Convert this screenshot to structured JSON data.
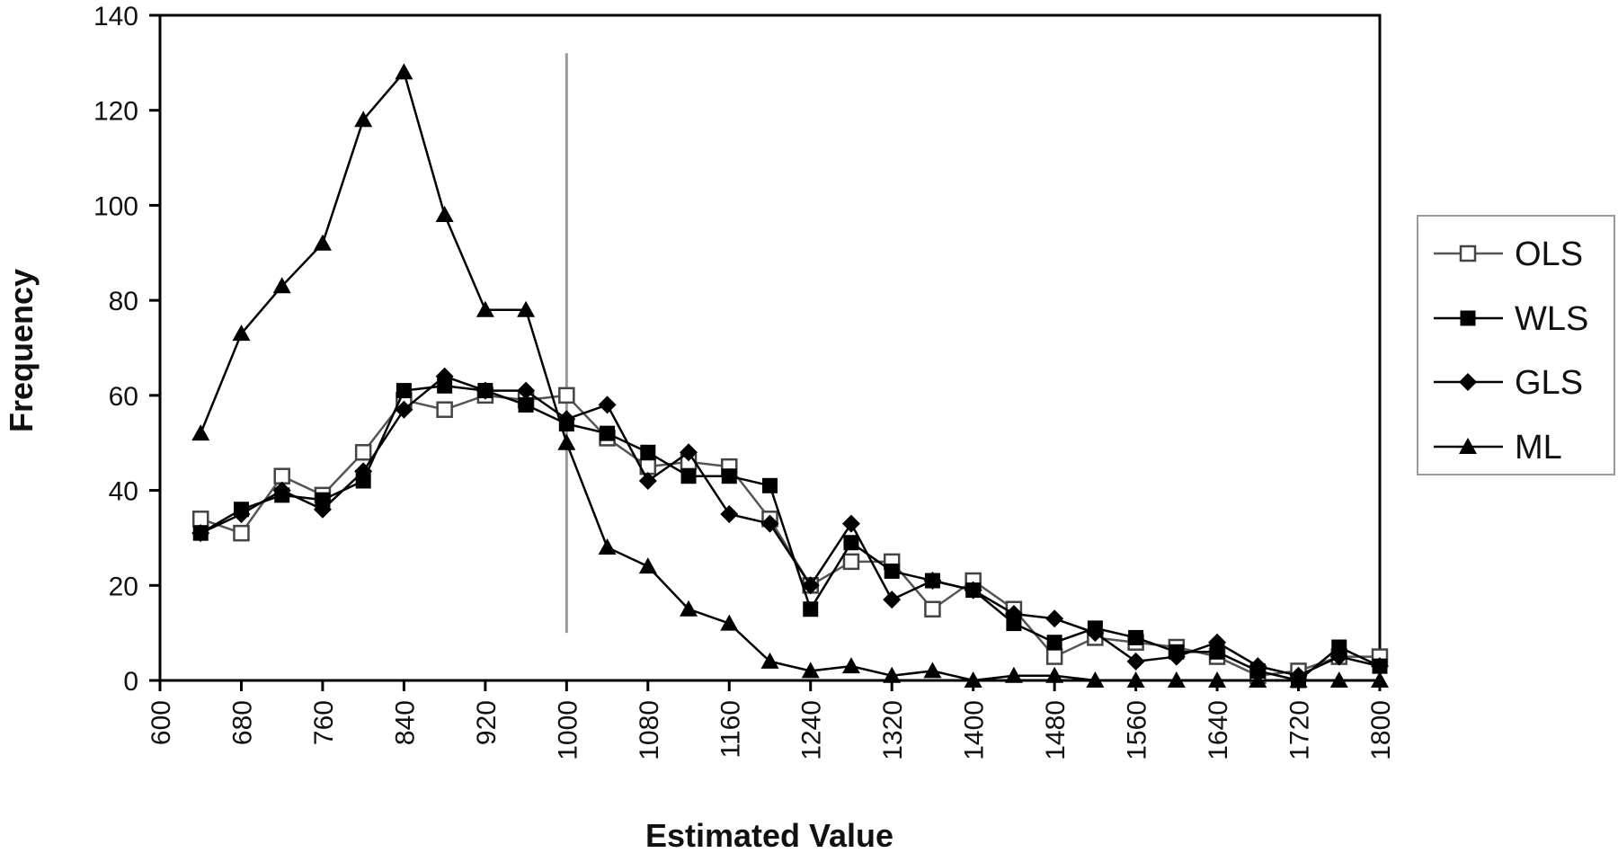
{
  "chart_data": {
    "type": "line",
    "title": "",
    "xlabel": "Estimated Value",
    "ylabel": "Frequency",
    "xlim": [
      600,
      1800
    ],
    "ylim": [
      0,
      140
    ],
    "x_ticks": [
      600,
      680,
      760,
      840,
      920,
      1000,
      1080,
      1160,
      1240,
      1320,
      1400,
      1480,
      1560,
      1640,
      1720,
      1800
    ],
    "y_ticks": [
      0,
      20,
      40,
      60,
      80,
      100,
      120,
      140
    ],
    "reference_line_x": 1000,
    "grid": false,
    "legend_position": "right",
    "x": [
      640,
      680,
      720,
      760,
      800,
      840,
      880,
      920,
      960,
      1000,
      1040,
      1080,
      1120,
      1160,
      1200,
      1240,
      1280,
      1320,
      1360,
      1400,
      1440,
      1480,
      1520,
      1560,
      1600,
      1640,
      1680,
      1720,
      1760,
      1800
    ],
    "series": [
      {
        "name": "OLS",
        "marker": "open-square",
        "values": [
          34,
          31,
          43,
          39,
          48,
          59,
          57,
          60,
          59,
          60,
          51,
          45,
          46,
          45,
          34,
          20,
          25,
          25,
          15,
          21,
          15,
          5,
          9,
          8,
          7,
          5,
          1,
          2,
          5,
          5
        ]
      },
      {
        "name": "WLS",
        "marker": "filled-square",
        "values": [
          31,
          36,
          39,
          38,
          42,
          61,
          62,
          61,
          58,
          54,
          52,
          48,
          43,
          43,
          41,
          15,
          29,
          23,
          21,
          19,
          12,
          8,
          11,
          9,
          6,
          6,
          2,
          0,
          7,
          3
        ]
      },
      {
        "name": "GLS",
        "marker": "filled-diamond",
        "values": [
          31,
          35,
          40,
          36,
          44,
          57,
          64,
          61,
          61,
          55,
          58,
          42,
          48,
          35,
          33,
          20,
          33,
          17,
          21,
          19,
          14,
          13,
          10,
          4,
          5,
          8,
          3,
          1,
          5,
          3
        ]
      },
      {
        "name": "ML",
        "marker": "filled-triangle",
        "values": [
          52,
          73,
          83,
          92,
          118,
          128,
          98,
          78,
          78,
          50,
          28,
          24,
          15,
          12,
          4,
          2,
          3,
          1,
          2,
          0,
          1,
          1,
          0,
          0,
          0,
          0,
          0,
          0,
          0,
          0
        ]
      }
    ]
  }
}
